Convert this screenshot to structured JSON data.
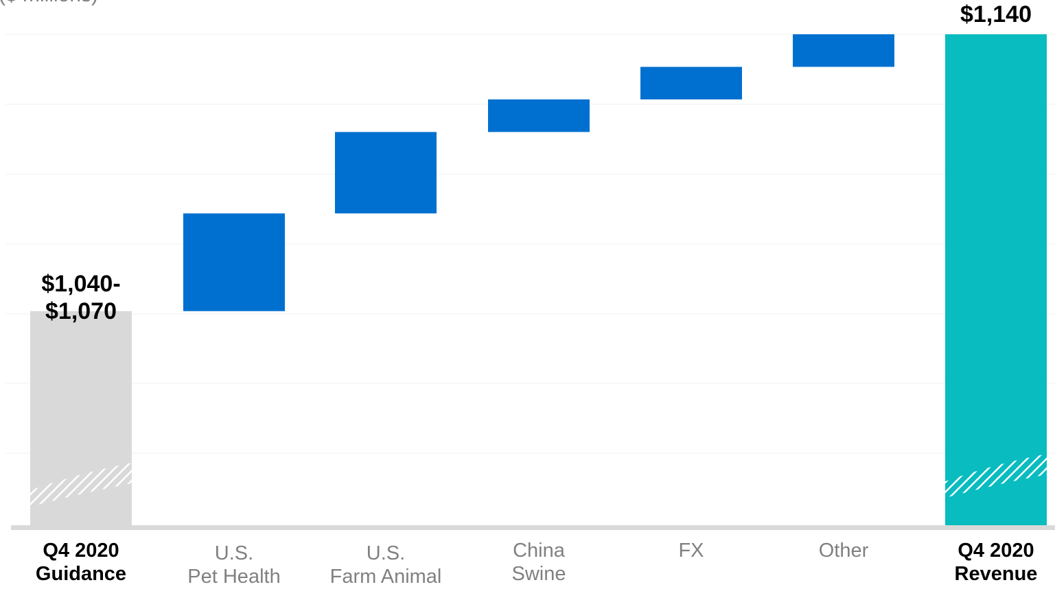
{
  "chart_data": {
    "type": "bar",
    "subtype": "waterfall",
    "ylabel_partial": "($ millions)",
    "categories": [
      {
        "lines": [
          "Q4 2020",
          "Guidance"
        ],
        "bold": true
      },
      {
        "lines": [
          "U.S.",
          "Pet Health"
        ],
        "bold": false
      },
      {
        "lines": [
          "U.S.",
          "Farm Animal"
        ],
        "bold": false
      },
      {
        "lines": [
          "China",
          "Swine"
        ],
        "bold": false
      },
      {
        "lines": [
          "FX"
        ],
        "bold": false
      },
      {
        "lines": [
          "Other"
        ],
        "bold": false
      },
      {
        "lines": [
          "Q4 2020",
          "Revenue"
        ],
        "bold": true
      }
    ],
    "bars": [
      {
        "kind": "total",
        "base": 0,
        "value": 1055,
        "color": "#d9d9d9",
        "label_lines": [
          "$1,040-",
          "$1,070"
        ]
      },
      {
        "kind": "increase",
        "base": 1055,
        "value": 30,
        "color": "#0070d0"
      },
      {
        "kind": "increase",
        "base": 1085,
        "value": 25,
        "color": "#0070d0"
      },
      {
        "kind": "increase",
        "base": 1110,
        "value": 10,
        "color": "#0070d0"
      },
      {
        "kind": "increase",
        "base": 1120,
        "value": 10,
        "color": "#0070d0"
      },
      {
        "kind": "increase",
        "base": 1130,
        "value": 10,
        "color": "#0070d0"
      },
      {
        "kind": "total",
        "base": 0,
        "value": 1140,
        "color": "#08bcc0",
        "label_lines": [
          "$1,140"
        ]
      }
    ],
    "axis_break": true,
    "ylim": [
      1000,
      1140
    ],
    "grid": true,
    "legend": "none",
    "colors": {
      "guidance": "#d9d9d9",
      "increase": "#0070d0",
      "revenue": "#08bcc0",
      "baseline": "#d9d9d9",
      "grid": "#f0f0f0",
      "label_bold": "#000000",
      "label_regular": "#808080"
    }
  }
}
